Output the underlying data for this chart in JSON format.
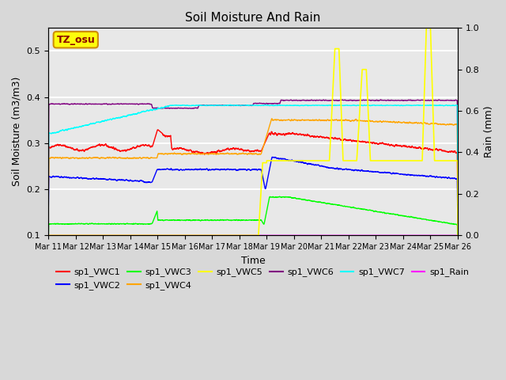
{
  "title": "Soil Moisture And Rain",
  "xlabel": "Time",
  "ylabel_left": "Soil Moisture (m3/m3)",
  "ylabel_right": "Rain (mm)",
  "ylim_left": [
    0.1,
    0.55
  ],
  "ylim_right": [
    0.0,
    1.0
  ],
  "xlim_days": 15,
  "x_tick_labels": [
    "Mar 11",
    "Mar 12",
    "Mar 13",
    "Mar 14",
    "Mar 15",
    "Mar 16",
    "Mar 17",
    "Mar 18",
    "Mar 19",
    "Mar 20",
    "Mar 21",
    "Mar 22",
    "Mar 23",
    "Mar 24",
    "Mar 25",
    "Mar 26"
  ],
  "annotation_text": "TZ_osu",
  "fig_bg": "#d8d8d8",
  "ax_bg": "#e8e8e8",
  "legend_order": [
    "sp1_VWC1",
    "sp1_VWC2",
    "sp1_VWC3",
    "sp1_VWC4",
    "sp1_VWC5",
    "sp1_VWC6",
    "sp1_VWC7",
    "sp1_Rain"
  ],
  "colors": {
    "sp1_VWC1": "red",
    "sp1_VWC2": "blue",
    "sp1_VWC3": "lime",
    "sp1_VWC4": "orange",
    "sp1_VWC5": "yellow",
    "sp1_VWC6": "purple",
    "sp1_VWC7": "cyan",
    "sp1_Rain": "magenta"
  }
}
